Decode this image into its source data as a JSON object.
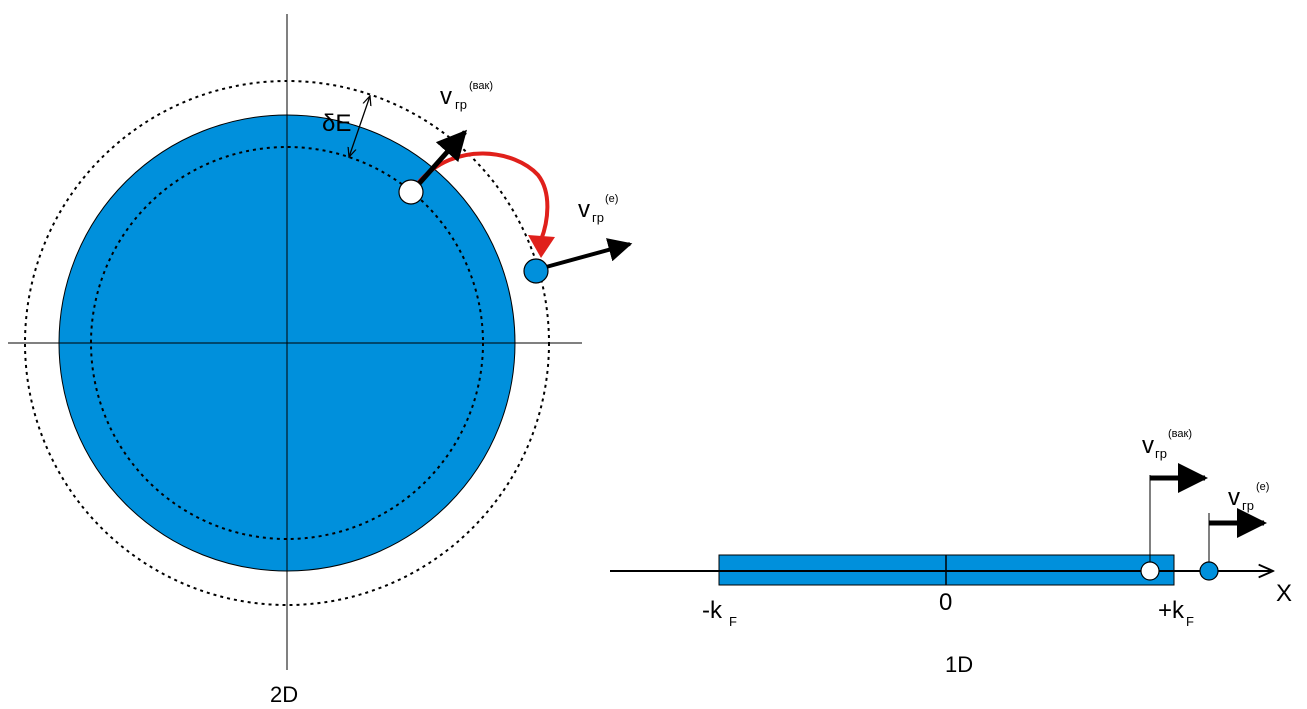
{
  "colors": {
    "fermi_fill": "#0090DC",
    "transition_arrow": "#E0201B",
    "stroke": "#000000",
    "hole_fill": "#FFFFFF"
  },
  "panel_2d": {
    "caption": "2D",
    "delta_label": "δE",
    "vac_velocity": {
      "base": "v",
      "sub": "гр",
      "sup": "(вак)"
    },
    "e_velocity": {
      "base": "v",
      "sub": "гр",
      "sup": "(e)"
    }
  },
  "panel_1d": {
    "caption": "1D",
    "axis_label": "X",
    "origin_label": "0",
    "minus_kf": {
      "base": "-k",
      "sub": "F"
    },
    "plus_kf": {
      "base": "+k",
      "sub": "F"
    },
    "vac_velocity": {
      "base": "v",
      "sub": "гр",
      "sup": "(вак)"
    },
    "e_velocity": {
      "base": "v",
      "sub": "гр",
      "sup": "(e)"
    }
  }
}
